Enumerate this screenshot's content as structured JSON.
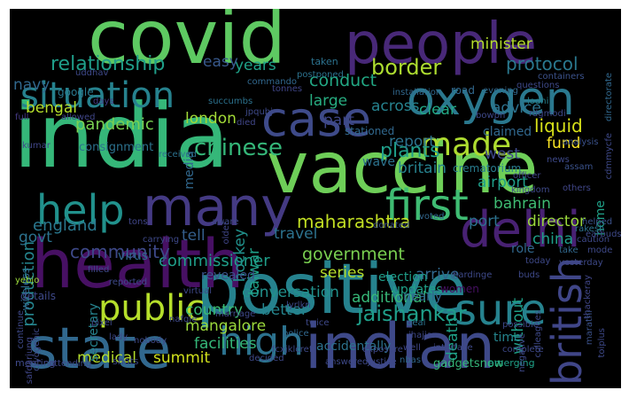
{
  "word_cloud": {
    "background": "#000000",
    "words": [
      {
        "text": "covid",
        "color": "#5ec962"
      },
      {
        "text": "india",
        "color": "#35b779"
      },
      {
        "text": "people",
        "color": "#482878"
      },
      {
        "text": "vaccine",
        "color": "#6ece58"
      },
      {
        "text": "positive",
        "color": "#26828e"
      },
      {
        "text": "indian",
        "color": "#3e4989"
      },
      {
        "text": "health",
        "color": "#471063"
      },
      {
        "text": "state",
        "color": "#31688e"
      },
      {
        "text": "oxygen",
        "color": "#2a788e"
      },
      {
        "text": "situation",
        "color": "#26828e"
      },
      {
        "text": "case",
        "color": "#3e4a89"
      },
      {
        "text": "many",
        "color": "#443a83"
      },
      {
        "text": "delhi",
        "color": "#482173"
      },
      {
        "text": "first",
        "color": "#3fbc73"
      },
      {
        "text": "help",
        "color": "#21918c"
      },
      {
        "text": "made",
        "color": "#addc30"
      },
      {
        "text": "sure",
        "color": "#26828e"
      },
      {
        "text": "british",
        "color": "#404688"
      },
      {
        "text": "high",
        "color": "#2c728e"
      },
      {
        "text": "public",
        "color": "#b5de2b"
      },
      {
        "text": "relationship",
        "color": "#1f9e89"
      },
      {
        "text": "border",
        "color": "#addc30"
      },
      {
        "text": "chinese",
        "color": "#35b779"
      },
      {
        "text": "plants",
        "color": "#1f9e89"
      },
      {
        "text": "liquid",
        "color": "#d8e219"
      },
      {
        "text": "fund",
        "color": "#fde725"
      },
      {
        "text": "maharashtra",
        "color": "#c2df23"
      },
      {
        "text": "jaishankar",
        "color": "#1f9e89"
      },
      {
        "text": "government",
        "color": "#7ad151"
      },
      {
        "text": "commissioner",
        "color": "#1f9e89"
      },
      {
        "text": "production",
        "color": "#25858e"
      },
      {
        "text": "community",
        "color": "#3e4989"
      },
      {
        "text": "england",
        "color": "#2a788e"
      },
      {
        "text": "pandemic",
        "color": "#7ad151"
      },
      {
        "text": "london",
        "color": "#a2da37"
      },
      {
        "text": "bengal",
        "color": "#b5de2b"
      },
      {
        "text": "navy",
        "color": "#31688e"
      },
      {
        "text": "minister",
        "color": "#b5de2b"
      },
      {
        "text": "protocol",
        "color": "#2a788e"
      },
      {
        "text": "conduct",
        "color": "#22a884"
      },
      {
        "text": "years",
        "color": "#1fa188"
      },
      {
        "text": "easy",
        "color": "#38598c"
      },
      {
        "text": "large",
        "color": "#27ad81"
      },
      {
        "text": "across",
        "color": "#26828e"
      },
      {
        "text": "clear",
        "color": "#22a884"
      },
      {
        "text": "part",
        "color": "#3f4788"
      },
      {
        "text": "advice",
        "color": "#2c728e"
      },
      {
        "text": "britain",
        "color": "#26828e"
      },
      {
        "text": "report",
        "color": "#2c728e"
      },
      {
        "text": "west",
        "color": "#3e4989"
      },
      {
        "text": "airport",
        "color": "#1f9e89"
      },
      {
        "text": "bahrain",
        "color": "#3fbc73"
      },
      {
        "text": "director",
        "color": "#9bd93c"
      },
      {
        "text": "port",
        "color": "#2c728e"
      },
      {
        "text": "china",
        "color": "#1f9e89"
      },
      {
        "text": "travel",
        "color": "#2c728e"
      },
      {
        "text": "series",
        "color": "#b5de2b"
      },
      {
        "text": "conversation",
        "color": "#21918c"
      },
      {
        "text": "better",
        "color": "#25858e"
      },
      {
        "text": "additional",
        "color": "#37b878"
      },
      {
        "text": "country",
        "color": "#3bbb75"
      },
      {
        "text": "tell",
        "color": "#355f8d"
      },
      {
        "text": "govt",
        "color": "#2c728e"
      },
      {
        "text": "mangalore",
        "color": "#9bd93c"
      },
      {
        "text": "medical",
        "color": "#b5de2b"
      },
      {
        "text": "summit",
        "color": "#d0e11c"
      },
      {
        "text": "facilities",
        "color": "#35b779"
      },
      {
        "text": "arrive",
        "color": "#31688e"
      },
      {
        "text": "election",
        "color": "#1f9e89"
      },
      {
        "text": "updates",
        "color": "#1fa188"
      },
      {
        "text": "death",
        "color": "#1fa188"
      },
      {
        "text": "without",
        "color": "#1fa188"
      },
      {
        "text": "time",
        "color": "#25858e"
      },
      {
        "text": "nearly",
        "color": "#31688e"
      },
      {
        "text": "women",
        "color": "#471063"
      },
      {
        "text": "hockey",
        "color": "#21918c"
      },
      {
        "text": "talwar",
        "color": "#1fa188"
      },
      {
        "text": "role",
        "color": "#31688e"
      },
      {
        "text": "secretary",
        "color": "#26828e"
      },
      {
        "text": "wave",
        "color": "#2c728e"
      },
      {
        "text": "claimed",
        "color": "#31688e"
      },
      {
        "text": "crematorium",
        "color": "#287c8e"
      },
      {
        "text": "road",
        "color": "#31688e"
      },
      {
        "text": "google",
        "color": "#2a788e"
      },
      {
        "text": "stationed",
        "color": "#31688e"
      },
      {
        "text": "revealed",
        "color": "#3a538b"
      },
      {
        "text": "accidentally",
        "color": "#2c728e"
      },
      {
        "text": "gadgetsnow",
        "color": "#35b779"
      },
      {
        "text": "emerging",
        "color": "#1fa188"
      },
      {
        "text": "virus",
        "color": "#31688e"
      },
      {
        "text": "consignment",
        "color": "#2c728e"
      },
      {
        "text": "media",
        "color": "#31688e"
      },
      {
        "text": "home",
        "color": "#1fa188"
      },
      {
        "text": "taken",
        "color": "#2c728e"
      },
      {
        "text": "uddhav",
        "color": "#3e4989"
      },
      {
        "text": "tonnes",
        "color": "#404688"
      },
      {
        "text": "postponed",
        "color": "#2c728e"
      },
      {
        "text": "installation",
        "color": "#31688e"
      },
      {
        "text": "evening",
        "color": "#31688e"
      },
      {
        "text": "questions",
        "color": "#3e4989"
      },
      {
        "text": "containers",
        "color": "#3b528b"
      },
      {
        "text": "commando",
        "color": "#31688e"
      },
      {
        "text": "allowed",
        "color": "#404688"
      },
      {
        "text": "full",
        "color": "#443983"
      },
      {
        "text": "days",
        "color": "#443983"
      },
      {
        "text": "succumbs",
        "color": "#2c728e"
      },
      {
        "text": "jpqubj",
        "color": "#3e4989"
      },
      {
        "text": "lodhi",
        "color": "#26828e"
      },
      {
        "text": "rdgmodi",
        "color": "#3e4989"
      },
      {
        "text": "directorate",
        "color": "#31688e"
      },
      {
        "text": "bowpn",
        "color": "#3e4989"
      },
      {
        "text": "died",
        "color": "#404688"
      },
      {
        "text": "analysis",
        "color": "#3b528b"
      },
      {
        "text": "news",
        "color": "#3e4989"
      },
      {
        "text": "officer",
        "color": "#404688"
      },
      {
        "text": "assam",
        "color": "#3b528b"
      },
      {
        "text": "others",
        "color": "#404688"
      },
      {
        "text": "kingdom",
        "color": "#3e4989"
      },
      {
        "text": "voted",
        "color": "#31688e"
      },
      {
        "text": "donated",
        "color": "#3b528b"
      },
      {
        "text": "kumar",
        "color": "#404688"
      },
      {
        "text": "received",
        "color": "#2c728e"
      },
      {
        "text": "wireless",
        "color": "#31688e"
      },
      {
        "text": "filled",
        "color": "#3e4989"
      },
      {
        "text": "tons",
        "color": "#404688"
      },
      {
        "text": "carrying",
        "color": "#3e4989"
      },
      {
        "text": "reported",
        "color": "#3e4989"
      },
      {
        "text": "aware",
        "color": "#3e4989"
      },
      {
        "text": "today",
        "color": "#3e4989"
      },
      {
        "text": "take",
        "color": "#31688e"
      },
      {
        "text": "yesterday",
        "color": "#3e4989"
      },
      {
        "text": "mode",
        "color": "#3e4989"
      },
      {
        "text": "thackeray",
        "color": "#404688"
      },
      {
        "text": "rakesh",
        "color": "#2c728e"
      },
      {
        "text": "caution",
        "color": "#3e4989"
      },
      {
        "text": "helped",
        "color": "#3b528b"
      },
      {
        "text": "earbuds",
        "color": "#3e4989"
      },
      {
        "text": "buds",
        "color": "#3e4989"
      },
      {
        "text": "hardinge",
        "color": "#3e4989"
      },
      {
        "text": "yebjo",
        "color": "#9bd93c"
      },
      {
        "text": "details",
        "color": "#3e4989"
      },
      {
        "text": "virtual",
        "color": "#3e4989"
      },
      {
        "text": "older",
        "color": "#404688"
      },
      {
        "text": "deal",
        "color": "#2c728e"
      },
      {
        "text": "jhajjar",
        "color": "#3e4989"
      },
      {
        "text": "well",
        "color": "#404688"
      },
      {
        "text": "interface",
        "color": "#3e4989"
      },
      {
        "text": "possible",
        "color": "#3e4989"
      },
      {
        "text": "colleagues",
        "color": "#3e4989"
      },
      {
        "text": "marathi",
        "color": "#3b528b"
      },
      {
        "text": "nafqle",
        "color": "#3e4989"
      },
      {
        "text": "lyrlkn",
        "color": "#3e4989"
      },
      {
        "text": "twice",
        "color": "#3e4989"
      },
      {
        "text": "police",
        "color": "#31688e"
      },
      {
        "text": "fcxjklcref",
        "color": "#3e4989"
      },
      {
        "text": "pixel",
        "color": "#3e4989"
      },
      {
        "text": "continue",
        "color": "#3e4989"
      },
      {
        "text": "nobody",
        "color": "#3e4989"
      },
      {
        "text": "marriage",
        "color": "#3e4989"
      },
      {
        "text": "cryogenic",
        "color": "#3e4989"
      },
      {
        "text": "lady",
        "color": "#3e4989"
      },
      {
        "text": "decided",
        "color": "#3e4989"
      },
      {
        "text": "answered",
        "color": "#3e4989"
      },
      {
        "text": "justice",
        "color": "#3e4989"
      },
      {
        "text": "nbas",
        "color": "#31688e"
      },
      {
        "text": "shots",
        "color": "#3e4989"
      },
      {
        "text": "meeting",
        "color": "#3e4989"
      },
      {
        "text": "attending",
        "color": "#3e4989"
      },
      {
        "text": "exposure",
        "color": "#3e4989"
      },
      {
        "text": "complete",
        "color": "#3e4989"
      },
      {
        "text": "negative",
        "color": "#3e4989"
      },
      {
        "text": "toiplus",
        "color": "#3e4989"
      },
      {
        "text": "cdmmycfe",
        "color": "#3e4989"
      },
      {
        "text": "safdarjung",
        "color": "#404688"
      }
    ]
  }
}
